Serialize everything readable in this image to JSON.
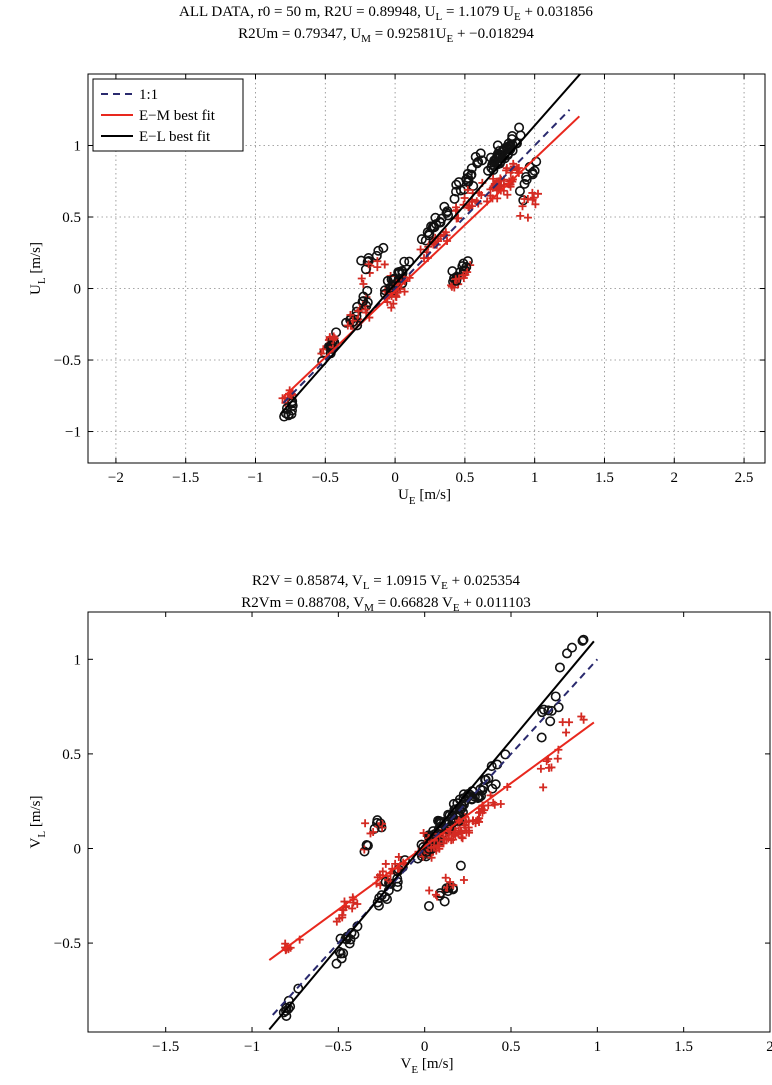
{
  "titles": {
    "top_line1_a": "ALL DATA, r0 = 50 m, R2U = 0.89948, U",
    "top_line1_sub1": "L",
    "top_line1_b": " = 1.1079 U",
    "top_line1_sub2": "E",
    "top_line1_c": " + 0.031856",
    "top_line2_a": "R2Um = 0.79347, U",
    "top_line2_sub1": "M",
    "top_line2_b": " = 0.92581U",
    "top_line2_sub2": "E",
    "top_line2_c": " + −0.018294",
    "bot_line1_a": "R2V = 0.85874, V",
    "bot_line1_sub1": "L",
    "bot_line1_b": " = 1.0915 V",
    "bot_line1_sub2": "E",
    "bot_line1_c": " + 0.025354",
    "bot_line2_a": "R2Vm = 0.88708, V",
    "bot_line2_sub1": "M",
    "bot_line2_b": " = 0.66828 V",
    "bot_line2_sub2": "E",
    "bot_line2_c": " + 0.011103"
  },
  "colors": {
    "one_to_one": "#2a2a6e",
    "em_fit": "#e8281e",
    "el_fit": "#000000",
    "circles": "#111111",
    "crosses": "#d42a22",
    "grid": "#8a8a8a"
  },
  "chart_data": [
    {
      "type": "scatter",
      "xlabel": "U",
      "xlabel_sub": "E",
      "xlabel_unit": " [m/s]",
      "ylabel": "U",
      "ylabel_sub": "L",
      "ylabel_unit": " [m/s]",
      "xlim": [
        -2.2,
        2.65
      ],
      "ylim": [
        -1.22,
        1.5
      ],
      "xticks": [
        -2,
        -1.5,
        -1,
        -0.5,
        0,
        0.5,
        1,
        1.5,
        2,
        2.5
      ],
      "xtick_labels": [
        "−2",
        "−1.5",
        "−1",
        "−0.5",
        "0",
        "0.5",
        "1",
        "1.5",
        "2",
        "2.5"
      ],
      "yticks": [
        -1,
        -0.5,
        0,
        0.5,
        1
      ],
      "ytick_labels": [
        "−1",
        "−0.5",
        "0",
        "0.5",
        "1"
      ],
      "grid": true,
      "legend": {
        "position": "top-left",
        "entries": [
          "1:1",
          "E−M best fit",
          "E−L best fit"
        ]
      },
      "lines": [
        {
          "name": "1:1",
          "style": "dashed",
          "x": [
            -0.8,
            1.25
          ],
          "y": [
            -0.8,
            1.25
          ]
        },
        {
          "name": "E−M best fit",
          "style": "solid",
          "x": [
            -0.8,
            1.32
          ],
          "y": [
            -0.759,
            1.204
          ]
        },
        {
          "name": "E−L best fit",
          "style": "solid",
          "x": [
            -0.82,
            1.33
          ],
          "y": [
            -0.877,
            1.505
          ]
        }
      ],
      "clusters": [
        {
          "x": 0.78,
          "y": 0.95,
          "n": 45,
          "sx": 0.12,
          "sy": 0.12
        },
        {
          "x": 0.55,
          "y": 0.8,
          "n": 20,
          "sx": 0.12,
          "sy": 0.12
        },
        {
          "x": 0.3,
          "y": 0.45,
          "n": 18,
          "sx": 0.1,
          "sy": 0.1
        },
        {
          "x": 0.45,
          "y": 0.1,
          "n": 14,
          "sx": 0.08,
          "sy": 0.08
        },
        {
          "x": 0.0,
          "y": 0.05,
          "n": 25,
          "sx": 0.12,
          "sy": 0.15
        },
        {
          "x": -0.25,
          "y": -0.15,
          "n": 15,
          "sx": 0.08,
          "sy": 0.1
        },
        {
          "x": -0.45,
          "y": -0.4,
          "n": 15,
          "sx": 0.1,
          "sy": 0.08
        },
        {
          "x": -0.75,
          "y": -0.85,
          "n": 10,
          "sx": 0.05,
          "sy": 0.07
        },
        {
          "x": 0.95,
          "y": 0.75,
          "n": 10,
          "sx": 0.1,
          "sy": 0.12
        },
        {
          "x": -0.15,
          "y": 0.25,
          "n": 8,
          "sx": 0.1,
          "sy": 0.1
        }
      ],
      "em_slope": 0.92581,
      "em_intercept": -0.018294,
      "el_slope": 1.1079,
      "el_intercept": 0.031856
    },
    {
      "type": "scatter",
      "xlabel": "V",
      "xlabel_sub": "E",
      "xlabel_unit": " [m/s]",
      "ylabel": "V",
      "ylabel_sub": "L",
      "ylabel_unit": " [m/s]",
      "xlim": [
        -1.95,
        2.0
      ],
      "ylim": [
        -0.97,
        1.25
      ],
      "xticks": [
        -1.5,
        -1,
        -0.5,
        0,
        0.5,
        1,
        1.5,
        2
      ],
      "xtick_labels": [
        "−1.5",
        "−1",
        "−0.5",
        "0",
        "0.5",
        "1",
        "1.5",
        "2"
      ],
      "yticks": [
        -0.5,
        0,
        0.5,
        1
      ],
      "ytick_labels": [
        "−0.5",
        "0",
        "0.5",
        "1"
      ],
      "grid": false,
      "lines": [
        {
          "name": "1:1",
          "style": "dashed",
          "x": [
            -0.88,
            1.0
          ],
          "y": [
            -0.88,
            1.0
          ]
        },
        {
          "name": "E−M best fit",
          "style": "solid",
          "x": [
            -0.9,
            0.98
          ],
          "y": [
            -0.59,
            0.666
          ]
        },
        {
          "name": "E−L best fit",
          "style": "solid",
          "x": [
            -0.9,
            0.98
          ],
          "y": [
            -0.957,
            1.095
          ]
        }
      ],
      "clusters": [
        {
          "x": 0.05,
          "y": 0.05,
          "n": 40,
          "sx": 0.1,
          "sy": 0.1
        },
        {
          "x": 0.2,
          "y": 0.2,
          "n": 35,
          "sx": 0.12,
          "sy": 0.1
        },
        {
          "x": 0.35,
          "y": 0.35,
          "n": 18,
          "sx": 0.1,
          "sy": 0.1
        },
        {
          "x": -0.2,
          "y": -0.2,
          "n": 18,
          "sx": 0.1,
          "sy": 0.1
        },
        {
          "x": -0.45,
          "y": -0.5,
          "n": 14,
          "sx": 0.08,
          "sy": 0.08
        },
        {
          "x": -0.8,
          "y": -0.85,
          "n": 8,
          "sx": 0.06,
          "sy": 0.06
        },
        {
          "x": 0.7,
          "y": 0.7,
          "n": 8,
          "sx": 0.08,
          "sy": 0.12
        },
        {
          "x": 0.85,
          "y": 1.05,
          "n": 5,
          "sx": 0.08,
          "sy": 0.1
        },
        {
          "x": -0.3,
          "y": 0.05,
          "n": 8,
          "sx": 0.15,
          "sy": 0.1
        },
        {
          "x": 0.15,
          "y": -0.2,
          "n": 10,
          "sx": 0.1,
          "sy": 0.1
        }
      ],
      "em_slope": 0.66828,
      "em_intercept": 0.011103,
      "el_slope": 1.0915,
      "el_intercept": 0.025354
    }
  ]
}
